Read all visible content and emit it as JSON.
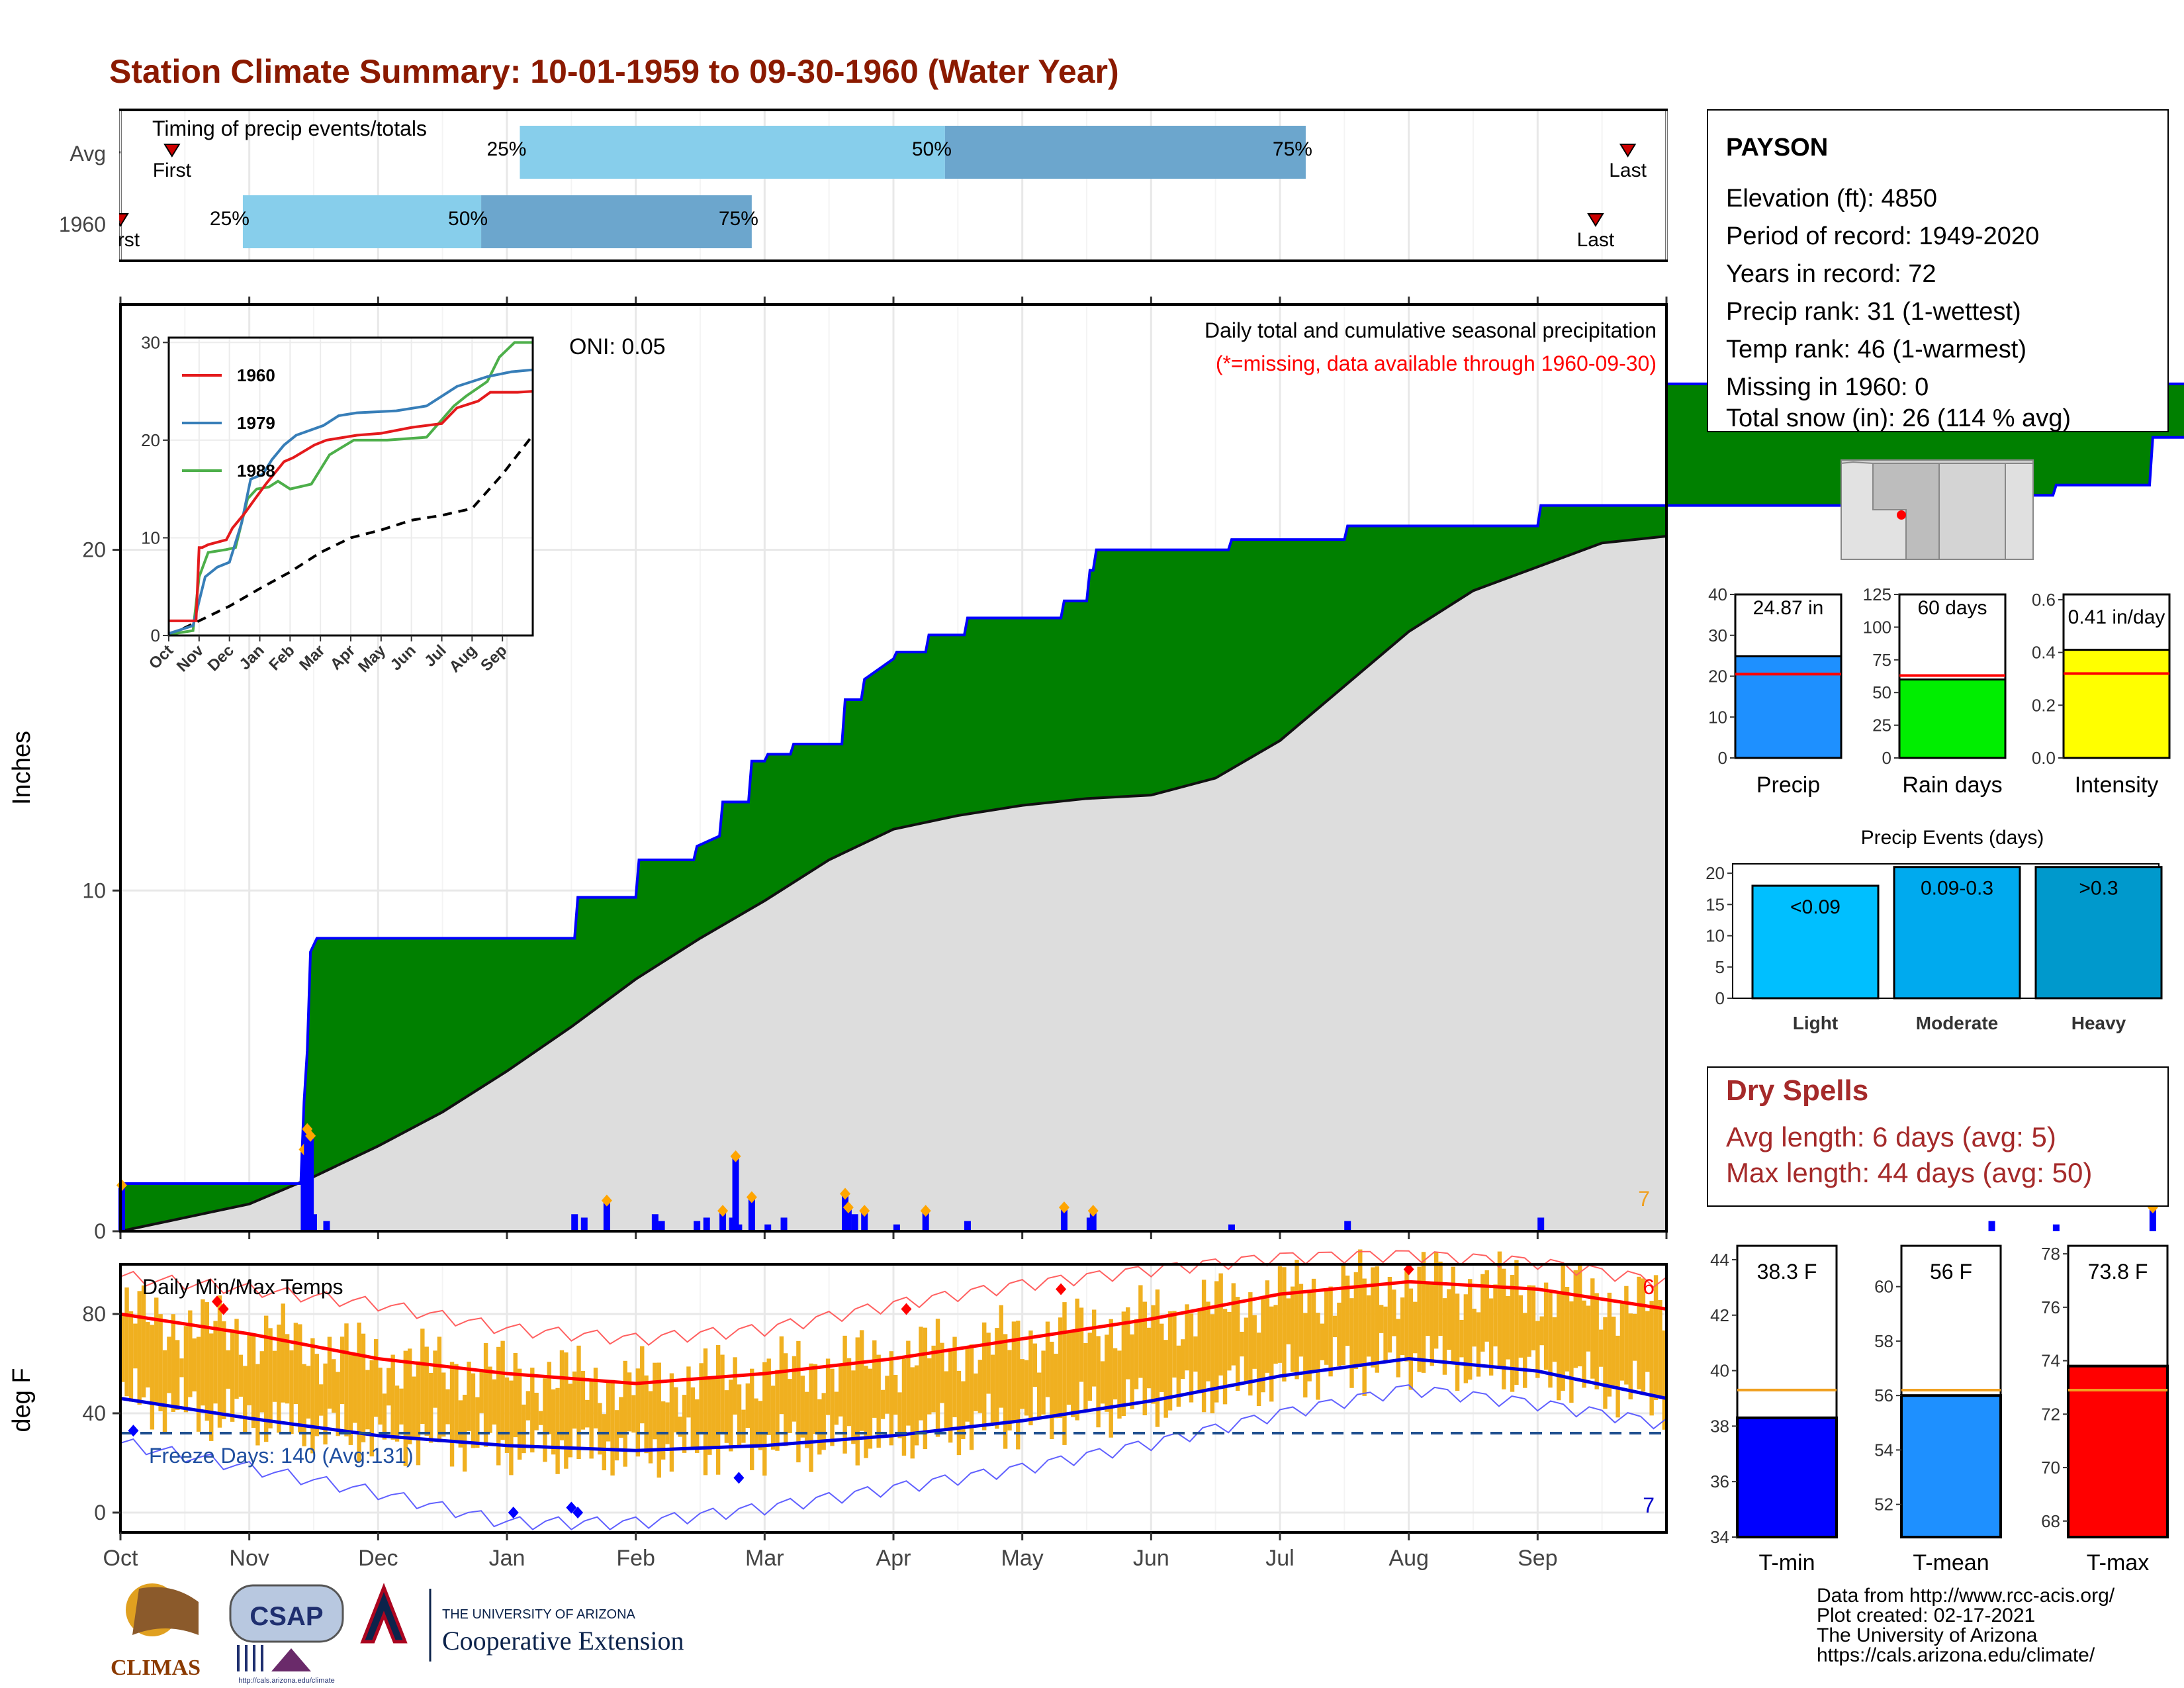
{
  "title": "Station Climate Summary: 10-01-1959 to 09-30-1960 (Water Year)",
  "timing": {
    "label": "Timing of precip events/totals",
    "rows": [
      {
        "name": "Avg",
        "first_label": "First",
        "last_label": "Last",
        "first_month": 0.4,
        "last_month": 11.7,
        "p25": 3.1,
        "p50": 6.4,
        "p75": 9.2
      },
      {
        "name": "1960",
        "first_label": "First",
        "last_label": "Last",
        "first_month": 0.0,
        "last_month": 11.45,
        "p25": 0.95,
        "p50": 2.8,
        "p75": 4.9
      }
    ],
    "pct_labels": [
      "25%",
      "50%",
      "75%"
    ]
  },
  "main_chart": {
    "ylabel": "Inches",
    "yticks": [
      0,
      10,
      20
    ],
    "ylim": [
      0,
      27.2
    ],
    "oni_label": "ONI: 0.05",
    "legend_title": "Daily total and cumulative seasonal precipitation",
    "legend_note": "(*=missing, data available through 1960-09-30)",
    "corner_value": "7",
    "cumulative_1960": [
      [
        0,
        0
      ],
      [
        0.02,
        1.4
      ],
      [
        2.8,
        1.4
      ],
      [
        2.85,
        3.8
      ],
      [
        2.9,
        5.3
      ],
      [
        2.95,
        8.2
      ],
      [
        3.05,
        8.6
      ],
      [
        7.05,
        8.6
      ],
      [
        7.1,
        9.8
      ],
      [
        8.0,
        9.8
      ],
      [
        8.05,
        10.9
      ],
      [
        8.9,
        10.9
      ],
      [
        8.95,
        11.3
      ],
      [
        9.3,
        11.6
      ],
      [
        9.35,
        12.6
      ],
      [
        9.75,
        12.6
      ],
      [
        9.8,
        13.8
      ],
      [
        10.0,
        13.8
      ],
      [
        10.05,
        14.0
      ],
      [
        10.4,
        14.0
      ],
      [
        10.45,
        14.3
      ],
      [
        11.2,
        14.3
      ],
      [
        11.25,
        15.6
      ],
      [
        11.5,
        15.6
      ],
      [
        11.55,
        16.2
      ],
      [
        12.0,
        16.8
      ],
      [
        12.05,
        17.0
      ],
      [
        12.5,
        17.0
      ],
      [
        12.55,
        17.5
      ],
      [
        13.1,
        17.5
      ],
      [
        13.15,
        18.0
      ],
      [
        14.6,
        18.0
      ],
      [
        14.65,
        18.5
      ],
      [
        15.0,
        18.5
      ],
      [
        15.05,
        19.4
      ],
      [
        15.1,
        19.4
      ],
      [
        15.15,
        20.0
      ],
      [
        17.2,
        20.0
      ],
      [
        17.25,
        20.3
      ],
      [
        19.0,
        20.3
      ],
      [
        19.05,
        20.7
      ],
      [
        22.0,
        20.7
      ],
      [
        22.05,
        21.3
      ],
      [
        29.0,
        21.3
      ],
      [
        29.05,
        21.6
      ],
      [
        30.0,
        21.6
      ],
      [
        30.05,
        21.9
      ],
      [
        31.5,
        21.9
      ],
      [
        31.55,
        23.3
      ],
      [
        32.5,
        23.3
      ],
      [
        32.55,
        24.0
      ],
      [
        33.2,
        24.0
      ],
      [
        33.25,
        24.9
      ],
      [
        33.5,
        24.9
      ],
      [
        33.55,
        25.0
      ],
      [
        34.0,
        25.0
      ],
      [
        34.1,
        24.87
      ]
    ],
    "avg_cumulative": [
      [
        0,
        0
      ],
      [
        1,
        0.4
      ],
      [
        2,
        0.8
      ],
      [
        3,
        1.6
      ],
      [
        4,
        2.5
      ],
      [
        5,
        3.5
      ],
      [
        6,
        4.7
      ],
      [
        7,
        6.0
      ],
      [
        8,
        7.4
      ],
      [
        9,
        8.6
      ],
      [
        10,
        9.7
      ],
      [
        11,
        10.9
      ],
      [
        12,
        11.8
      ],
      [
        13,
        12.2
      ],
      [
        14,
        12.5
      ],
      [
        15,
        12.7
      ],
      [
        16,
        12.8
      ],
      [
        17,
        13.3
      ],
      [
        18,
        14.4
      ],
      [
        19,
        16.0
      ],
      [
        20,
        17.6
      ],
      [
        21,
        18.8
      ],
      [
        22,
        19.5
      ],
      [
        23,
        20.2
      ]
    ],
    "daily_precip": [
      [
        0.02,
        1.35
      ],
      [
        2.85,
        2.4
      ],
      [
        2.9,
        3.0
      ],
      [
        2.95,
        2.8
      ],
      [
        3.0,
        0.5
      ],
      [
        3.2,
        0.3
      ],
      [
        7.05,
        0.5
      ],
      [
        7.2,
        0.4
      ],
      [
        7.55,
        0.9
      ],
      [
        8.3,
        0.5
      ],
      [
        8.4,
        0.3
      ],
      [
        8.95,
        0.3
      ],
      [
        9.1,
        0.4
      ],
      [
        9.35,
        0.6
      ],
      [
        9.5,
        0.4
      ],
      [
        9.55,
        2.2
      ],
      [
        9.6,
        0.2
      ],
      [
        9.8,
        1.0
      ],
      [
        10.05,
        0.2
      ],
      [
        10.3,
        0.4
      ],
      [
        11.25,
        1.1
      ],
      [
        11.3,
        0.7
      ],
      [
        11.4,
        0.5
      ],
      [
        11.55,
        0.6
      ],
      [
        12.05,
        0.2
      ],
      [
        12.5,
        0.6
      ],
      [
        13.15,
        0.3
      ],
      [
        14.65,
        0.7
      ],
      [
        15.05,
        0.4
      ],
      [
        15.1,
        0.6
      ],
      [
        17.25,
        0.2
      ],
      [
        19.05,
        0.3
      ],
      [
        22.05,
        0.4
      ],
      [
        29.05,
        0.3
      ],
      [
        30.05,
        0.2
      ],
      [
        31.55,
        0.7
      ],
      [
        32.55,
        0.3
      ],
      [
        33.25,
        0.4
      ],
      [
        33.55,
        0.3
      ]
    ]
  },
  "inset": {
    "legend": [
      "1960",
      "1979",
      "1988"
    ],
    "legend_colors": [
      "#e41a1c",
      "#377eb8",
      "#4daf4a"
    ],
    "yticks": [
      0,
      10,
      20,
      30
    ],
    "ylim": [
      0,
      30
    ],
    "months": [
      "Oct",
      "Nov",
      "Dec",
      "Jan",
      "Feb",
      "Mar",
      "Apr",
      "May",
      "Jun",
      "Jul",
      "Aug",
      "Sep"
    ],
    "series_1960": [
      [
        0,
        1.5
      ],
      [
        0.9,
        1.5
      ],
      [
        1.0,
        9.0
      ],
      [
        1.1,
        9.0
      ],
      [
        1.3,
        9.3
      ],
      [
        1.9,
        9.8
      ],
      [
        2.1,
        11.0
      ],
      [
        2.5,
        12.5
      ],
      [
        2.8,
        13.8
      ],
      [
        3.2,
        15.5
      ],
      [
        3.8,
        17.8
      ],
      [
        4.1,
        18.2
      ],
      [
        4.8,
        19.5
      ],
      [
        5.2,
        20.0
      ],
      [
        5.8,
        20.3
      ],
      [
        6.2,
        20.5
      ],
      [
        7.0,
        20.7
      ],
      [
        8.0,
        21.3
      ],
      [
        9.0,
        21.7
      ],
      [
        9.5,
        23.3
      ],
      [
        10.2,
        24.0
      ],
      [
        10.6,
        24.9
      ],
      [
        11.1,
        24.9
      ],
      [
        11.5,
        24.9
      ],
      [
        12.0,
        25.0
      ]
    ],
    "series_1979": [
      [
        0,
        0.2
      ],
      [
        0.8,
        1.0
      ],
      [
        1.2,
        6.0
      ],
      [
        1.6,
        7.0
      ],
      [
        2.0,
        7.5
      ],
      [
        2.4,
        11.5
      ],
      [
        2.7,
        16.0
      ],
      [
        3.1,
        16.5
      ],
      [
        3.4,
        18.0
      ],
      [
        3.8,
        19.5
      ],
      [
        4.2,
        20.5
      ],
      [
        5.1,
        21.5
      ],
      [
        5.6,
        22.5
      ],
      [
        6.2,
        22.8
      ],
      [
        7.5,
        23.0
      ],
      [
        8.5,
        23.5
      ],
      [
        9.0,
        24.5
      ],
      [
        9.5,
        25.5
      ],
      [
        10.5,
        26.5
      ],
      [
        11.3,
        27.0
      ],
      [
        12.0,
        27.2
      ]
    ],
    "series_1988": [
      [
        0,
        0.1
      ],
      [
        0.8,
        0.5
      ],
      [
        1.0,
        6.0
      ],
      [
        1.3,
        8.5
      ],
      [
        1.9,
        8.8
      ],
      [
        2.2,
        9.0
      ],
      [
        2.6,
        14.0
      ],
      [
        2.9,
        15.0
      ],
      [
        3.3,
        15.2
      ],
      [
        3.6,
        15.8
      ],
      [
        4.0,
        15.0
      ],
      [
        4.7,
        15.5
      ],
      [
        5.3,
        18.5
      ],
      [
        6.1,
        20.0
      ],
      [
        7.2,
        20.0
      ],
      [
        8.5,
        20.3
      ],
      [
        9.4,
        23.5
      ],
      [
        9.8,
        24.5
      ],
      [
        10.5,
        26.0
      ],
      [
        10.9,
        28.5
      ],
      [
        11.4,
        30.0
      ],
      [
        12.0,
        30.0
      ]
    ],
    "series_avg": [
      [
        0,
        0
      ],
      [
        1,
        1.5
      ],
      [
        2,
        3.0
      ],
      [
        3,
        4.8
      ],
      [
        4,
        6.5
      ],
      [
        5,
        8.5
      ],
      [
        6,
        10.0
      ],
      [
        7,
        10.8
      ],
      [
        8,
        11.8
      ],
      [
        9,
        12.3
      ],
      [
        10,
        13.0
      ],
      [
        11,
        16.5
      ],
      [
        12,
        20.5
      ]
    ]
  },
  "temp_chart": {
    "title": "Daily Min/Max Temps",
    "ylabel": "deg F",
    "yticks": [
      0,
      40,
      80
    ],
    "ylim": [
      -8,
      100
    ],
    "freeze_label": "Freeze Days: 140 (Avg:131)",
    "max_record_count": "6",
    "min_record_count": "7",
    "months": [
      "Oct",
      "Nov",
      "Dec",
      "Jan",
      "Feb",
      "Mar",
      "Apr",
      "May",
      "Jun",
      "Jul",
      "Aug",
      "Sep"
    ],
    "avg_max": [
      [
        0,
        80
      ],
      [
        1,
        72
      ],
      [
        2,
        62
      ],
      [
        3,
        56
      ],
      [
        4,
        52
      ],
      [
        5,
        56
      ],
      [
        6,
        62
      ],
      [
        7,
        70
      ],
      [
        8,
        78
      ],
      [
        9,
        88
      ],
      [
        10,
        93
      ],
      [
        11,
        90
      ],
      [
        12,
        82
      ]
    ],
    "avg_min": [
      [
        0,
        46
      ],
      [
        1,
        38
      ],
      [
        2,
        31
      ],
      [
        3,
        27
      ],
      [
        4,
        25
      ],
      [
        5,
        27
      ],
      [
        6,
        31
      ],
      [
        7,
        37
      ],
      [
        8,
        45
      ],
      [
        9,
        55
      ],
      [
        10,
        62
      ],
      [
        11,
        57
      ],
      [
        12,
        46
      ]
    ],
    "rec_max": [
      [
        0,
        95
      ],
      [
        1,
        90
      ],
      [
        2,
        84
      ],
      [
        3,
        74
      ],
      [
        4,
        70
      ],
      [
        5,
        74
      ],
      [
        6,
        84
      ],
      [
        7,
        92
      ],
      [
        8,
        98
      ],
      [
        9,
        103
      ],
      [
        10,
        104
      ],
      [
        11,
        101
      ],
      [
        12,
        93
      ]
    ],
    "rec_min": [
      [
        0,
        28
      ],
      [
        1,
        18
      ],
      [
        2,
        8
      ],
      [
        3,
        -4
      ],
      [
        4,
        -4
      ],
      [
        5,
        2
      ],
      [
        6,
        10
      ],
      [
        7,
        18
      ],
      [
        8,
        28
      ],
      [
        9,
        40
      ],
      [
        10,
        50
      ],
      [
        11,
        44
      ],
      [
        12,
        36
      ]
    ],
    "freeze_line": 32
  },
  "station": {
    "name": "PAYSON",
    "lines": [
      "Elevation (ft): 4850",
      "Period of record: 1949-2020",
      "Years in record: 72",
      "Precip rank: 31 (1-wettest)",
      "Temp rank: 46 (1-warmest)",
      "Missing in 1960: 0",
      "Total snow (in): 26 (114 % avg)"
    ]
  },
  "summary_bars": [
    {
      "label": "Precip",
      "value_label": "24.87 in",
      "value": 24.87,
      "avg": 20.5,
      "yticks": [
        0,
        10,
        20,
        30,
        40
      ],
      "ymax": 40,
      "color": "#1e90ff"
    },
    {
      "label": "Rain days",
      "value_label": "60 days",
      "value": 60,
      "avg": 63,
      "yticks": [
        0,
        25,
        50,
        75,
        100,
        125
      ],
      "ymax": 125,
      "color": "#00ee00"
    },
    {
      "label": "Intensity",
      "value_label": "0.41 in/day",
      "value": 0.41,
      "avg": 0.32,
      "yticks": [
        "0.0",
        "0.2",
        "0.4",
        "0.6"
      ],
      "ymax": 0.62,
      "color": "#ffff00"
    }
  ],
  "precip_events": {
    "title": "Precip Events (days)",
    "yticks": [
      0,
      5,
      10,
      15,
      20
    ],
    "ymax": 21.5,
    "bars": [
      {
        "label": "Light",
        "range": "<0.09",
        "value": 18,
        "color": "#00bfff"
      },
      {
        "label": "Moderate",
        "range": "0.09-0.3",
        "value": 21,
        "color": "#00aaee"
      },
      {
        "label": "Heavy",
        "range": ">0.3",
        "value": 21,
        "color": "#0099cc"
      }
    ]
  },
  "dry_spells": {
    "title": "Dry Spells",
    "lines": [
      "Avg length: 6 days (avg: 5)",
      "Max length: 44 days (avg: 50)"
    ]
  },
  "temp_bars": [
    {
      "label": "T-min",
      "value_label": "38.3 F",
      "value": 38.3,
      "avg": 39.3,
      "yticks": [
        34,
        36,
        38,
        40,
        42,
        44
      ],
      "ylim": [
        34,
        44.5
      ],
      "color": "#0000ff"
    },
    {
      "label": "T-mean",
      "value_label": "56 F",
      "value": 56,
      "avg": 56.2,
      "yticks": [
        52,
        54,
        56,
        58,
        60
      ],
      "ylim": [
        50.8,
        61.5
      ],
      "color": "#1e90ff"
    },
    {
      "label": "T-max",
      "value_label": "73.8 F",
      "value": 73.8,
      "avg": 72.9,
      "yticks": [
        68,
        70,
        72,
        74,
        76,
        78
      ],
      "ylim": [
        67.4,
        78.3
      ],
      "color": "#ff0000"
    }
  ],
  "footer": {
    "source_lines": [
      "Data from http://www.rcc-acis.org/",
      "Plot created: 02-17-2021",
      "The University of Arizona",
      "https://cals.arizona.edu/climate/"
    ],
    "logo_climas": "CLIMAS",
    "logo_csap": "CSAP",
    "logo_csap_url": "http://cals.arizona.edu/climate",
    "ua_small": "THE UNIVERSITY OF ARIZONA",
    "ua_big": "Cooperative Extension"
  },
  "colors": {
    "title": "#8b1a00",
    "precip_fill": "#008000",
    "cum_line": "#0000ff",
    "avg_fill": "#dddddd",
    "bar_orange": "#f0b020",
    "dry_red": "#a52a2a"
  }
}
